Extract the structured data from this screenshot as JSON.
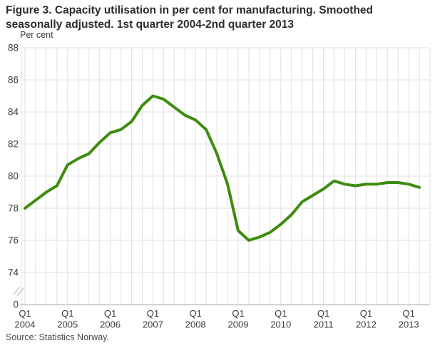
{
  "title": {
    "line1": "Figure 3. Capacity utilisation in per cent for manufacturing. Smoothed",
    "line2": "seasonally adjusted. 1st quarter 2004-2nd quarter 2013"
  },
  "source": "Source: Statistics Norway.",
  "colors": {
    "line_green": "#3e8c0e",
    "gridline": "#e2e2e2",
    "axis_line": "#b3b3b3",
    "tick_text": "#3c3c3c",
    "break_mark": "#c8ccd2"
  },
  "chart_data": {
    "type": "line",
    "title": "Figure 3. Capacity utilisation in per cent for manufacturing. Smoothed seasonally adjusted. 1st quarter 2004-2nd quarter 2013",
    "ylabel": "Per cent",
    "xlabel": "",
    "grid": true,
    "legend": "none",
    "ylim": [
      74,
      88
    ],
    "y_axis_break": true,
    "y_break_base_label": "0",
    "y_ticks": [
      88,
      86,
      84,
      82,
      80,
      78,
      76,
      74
    ],
    "x_year_ticks": [
      "2004",
      "2005",
      "2006",
      "2007",
      "2008",
      "2009",
      "2010",
      "2011",
      "2012",
      "2013"
    ],
    "x": [
      "Q1 2004",
      "Q2 2004",
      "Q3 2004",
      "Q4 2004",
      "Q1 2005",
      "Q2 2005",
      "Q3 2005",
      "Q4 2005",
      "Q1 2006",
      "Q2 2006",
      "Q3 2006",
      "Q4 2006",
      "Q1 2007",
      "Q2 2007",
      "Q3 2007",
      "Q4 2007",
      "Q1 2008",
      "Q2 2008",
      "Q3 2008",
      "Q4 2008",
      "Q1 2009",
      "Q2 2009",
      "Q3 2009",
      "Q4 2009",
      "Q1 2010",
      "Q2 2010",
      "Q3 2010",
      "Q4 2010",
      "Q1 2011",
      "Q2 2011",
      "Q3 2011",
      "Q4 2011",
      "Q1 2012",
      "Q2 2012",
      "Q3 2012",
      "Q4 2012",
      "Q1 2013",
      "Q2 2013"
    ],
    "values": [
      78.0,
      78.5,
      79.0,
      79.4,
      80.7,
      81.1,
      81.4,
      82.1,
      82.7,
      82.9,
      83.4,
      84.4,
      85.0,
      84.8,
      84.3,
      83.8,
      83.5,
      82.9,
      81.4,
      79.5,
      76.6,
      76.0,
      76.2,
      76.5,
      77.0,
      77.6,
      78.4,
      78.8,
      79.2,
      79.7,
      79.5,
      79.4,
      79.5,
      79.5,
      79.6,
      79.6,
      79.5,
      79.3
    ]
  }
}
